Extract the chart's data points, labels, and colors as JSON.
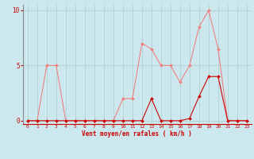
{
  "x": [
    0,
    1,
    2,
    3,
    4,
    5,
    6,
    7,
    8,
    9,
    10,
    11,
    12,
    13,
    14,
    15,
    16,
    17,
    18,
    19,
    20,
    21,
    22,
    23
  ],
  "rafales": [
    0,
    0,
    5,
    5,
    0,
    0,
    0,
    0,
    0,
    0,
    2,
    2,
    7,
    6.5,
    5,
    5,
    3.5,
    5,
    8.5,
    10,
    6.5,
    0,
    0,
    0
  ],
  "moyen": [
    0,
    0,
    0,
    0,
    0,
    0,
    0,
    0,
    0,
    0,
    0,
    0,
    0,
    2,
    0,
    0,
    0,
    0.2,
    2.2,
    4,
    4,
    0,
    0,
    0
  ],
  "color_rafales": "#f08080",
  "color_moyen": "#cc0000",
  "bg_color": "#cce8ee",
  "xlabel": "Vent moyen/en rafales ( km/h )",
  "xlabel_color": "#cc0000",
  "ylim": [
    -0.3,
    10.5
  ],
  "xlim": [
    -0.5,
    23.5
  ],
  "yticks": [
    0,
    5,
    10
  ],
  "xticks": [
    0,
    1,
    2,
    3,
    4,
    5,
    6,
    7,
    8,
    9,
    10,
    11,
    12,
    13,
    14,
    15,
    16,
    17,
    18,
    19,
    20,
    21,
    22,
    23
  ],
  "grid_color": "#aacccc",
  "tick_color": "#cc0000",
  "markersize": 2.0,
  "linewidth": 0.8
}
